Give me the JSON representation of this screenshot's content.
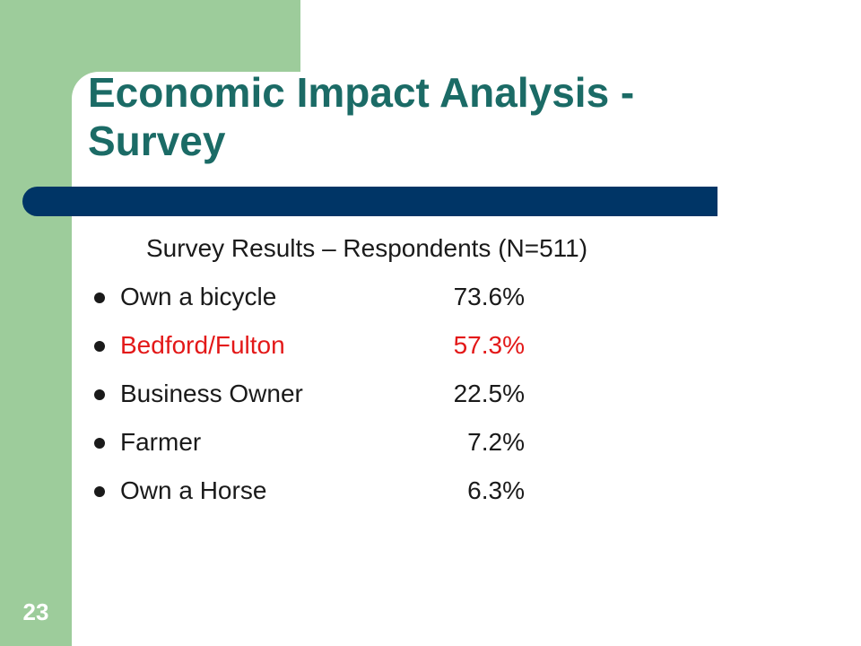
{
  "slide": {
    "title": "Economic Impact Analysis - Survey",
    "subtitle": "Survey Results – Respondents (N=511)",
    "number": "23",
    "colors": {
      "accent_green": "#9dcc9b",
      "title_teal": "#1b6b66",
      "bar_navy": "#003566",
      "highlight_red": "#e31818"
    },
    "items": [
      {
        "label": "Own a bicycle",
        "value": "73.6%",
        "highlight": false
      },
      {
        "label": "Bedford/Fulton",
        "value": "57.3%",
        "highlight": true
      },
      {
        "label": "Business Owner",
        "value": "22.5%",
        "highlight": false
      },
      {
        "label": "Farmer",
        "value": "7.2%",
        "highlight": false
      },
      {
        "label": "Own a Horse",
        "value": "6.3%",
        "highlight": false
      }
    ]
  }
}
